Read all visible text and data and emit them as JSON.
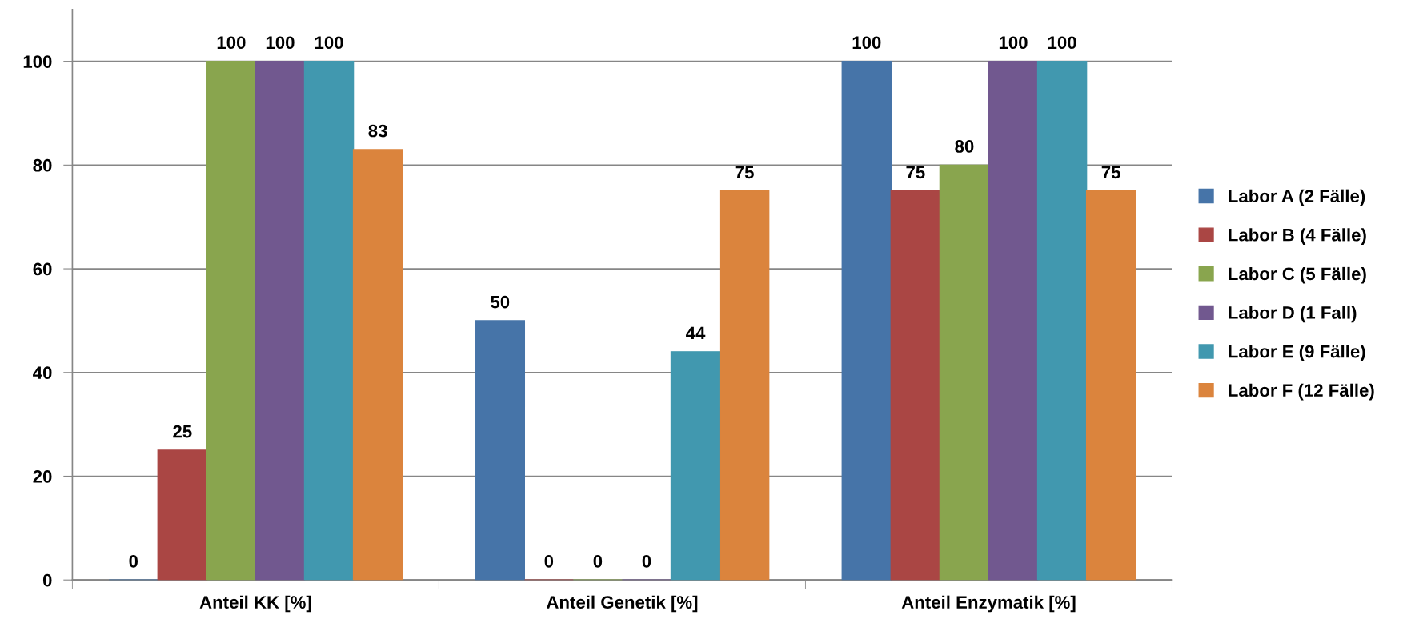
{
  "chart_data": {
    "type": "bar",
    "categories": [
      "Anteil KK [%]",
      "Anteil Genetik [%]",
      "Anteil Enzymatik [%]"
    ],
    "series": [
      {
        "name": "Labor A (2 Fälle)",
        "color": "#4674a8",
        "values": [
          0,
          50,
          100
        ]
      },
      {
        "name": "Labor B (4 Fälle)",
        "color": "#aa4644",
        "values": [
          25,
          0,
          75
        ]
      },
      {
        "name": "Labor C (5 Fälle)",
        "color": "#89a54e",
        "values": [
          100,
          0,
          80
        ]
      },
      {
        "name": "Labor D (1 Fall)",
        "color": "#71588f",
        "values": [
          100,
          0,
          100
        ]
      },
      {
        "name": "Labor E (9 Fälle)",
        "color": "#4198af",
        "values": [
          100,
          44,
          100
        ]
      },
      {
        "name": "Labor F (12 Fälle)",
        "color": "#db843d",
        "values": [
          83,
          75,
          75
        ]
      }
    ],
    "ylim": [
      0,
      110
    ],
    "yticks": [
      0,
      20,
      40,
      60,
      80,
      100
    ],
    "grid": "y",
    "legend": "right",
    "data_labels": true
  }
}
